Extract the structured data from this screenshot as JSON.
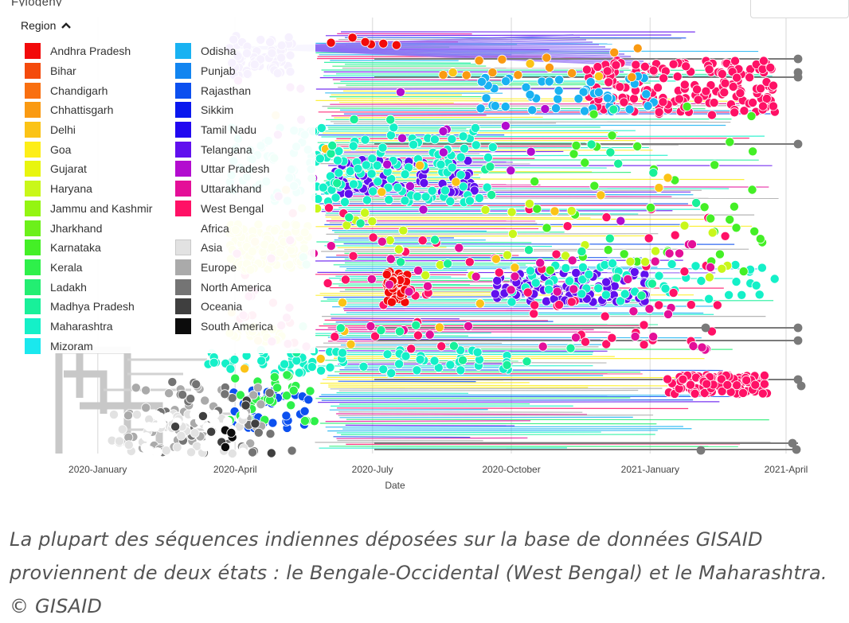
{
  "chart_data": {
    "type": "scatter",
    "subtype": "phylogenetic-tree",
    "title": "",
    "xlabel": "Date",
    "ylabel": "",
    "xlim": [
      "2019-12-01",
      "2021-04-10"
    ],
    "grid": true,
    "legend_position": "top-left",
    "x_ticks": [
      {
        "label": "2020-January",
        "date": "2020-01-01"
      },
      {
        "label": "2020-April",
        "date": "2020-04-01"
      },
      {
        "label": "2020-July",
        "date": "2020-07-01"
      },
      {
        "label": "2020-October",
        "date": "2020-10-01"
      },
      {
        "label": "2021-January",
        "date": "2021-01-01"
      },
      {
        "label": "2021-April",
        "date": "2021-04-01"
      }
    ],
    "legend": {
      "title": "Region",
      "partial_title": "Fylogeny",
      "entries": [
        {
          "name": "Andhra Pradesh",
          "color": "#f20a0a"
        },
        {
          "name": "Bihar",
          "color": "#f44a0c"
        },
        {
          "name": "Chandigarh",
          "color": "#f96f10"
        },
        {
          "name": "Chhattisgarh",
          "color": "#fa9a12"
        },
        {
          "name": "Delhi",
          "color": "#fbc316"
        },
        {
          "name": "Goa",
          "color": "#fdee18"
        },
        {
          "name": "Gujarat",
          "color": "#e8f50e"
        },
        {
          "name": "Haryana",
          "color": "#c9f71a"
        },
        {
          "name": "Jammu and Kashmir",
          "color": "#94f512"
        },
        {
          "name": "Jharkhand",
          "color": "#6cf01a"
        },
        {
          "name": "Karnataka",
          "color": "#44ef26"
        },
        {
          "name": "Kerala",
          "color": "#2ef04a"
        },
        {
          "name": "Ladakh",
          "color": "#23ee72"
        },
        {
          "name": "Madhya Pradesh",
          "color": "#18f09a"
        },
        {
          "name": "Maharashtra",
          "color": "#14f0c8"
        },
        {
          "name": "Mizoram",
          "color": "#1ae8ee"
        },
        {
          "name": "Odisha",
          "color": "#19b2f2"
        },
        {
          "name": "Punjab",
          "color": "#1285f0"
        },
        {
          "name": "Rajasthan",
          "color": "#0c50ef"
        },
        {
          "name": "Sikkim",
          "color": "#0a18ee"
        },
        {
          "name": "Tamil Nadu",
          "color": "#2108f0"
        },
        {
          "name": "Telangana",
          "color": "#6010ee"
        },
        {
          "name": "Uttar Pradesh",
          "color": "#b30ccf"
        },
        {
          "name": "Uttarakhand",
          "color": "#e40f98"
        },
        {
          "name": "West Bengal",
          "color": "#ff1166"
        },
        {
          "name": "Africa",
          "color": "#ffffff"
        },
        {
          "name": "Asia",
          "color": "#e2e2e2"
        },
        {
          "name": "Europe",
          "color": "#aaaaaa"
        },
        {
          "name": "North America",
          "color": "#747474"
        },
        {
          "name": "Oceania",
          "color": "#3f3f3f"
        },
        {
          "name": "South America",
          "color": "#0c0c0c"
        }
      ]
    },
    "series_summary": [
      {
        "name": "West Bengal",
        "cluster_dates": [
          "2020-12-20",
          "2021-03-20"
        ],
        "share": "high"
      },
      {
        "name": "Maharashtra",
        "cluster_dates": [
          "2020-03-20",
          "2021-03-20"
        ],
        "share": "high"
      },
      {
        "name": "Telangana",
        "cluster_dates": [
          "2020-06-15",
          "2020-12-25"
        ],
        "share": "medium"
      },
      {
        "name": "Gujarat",
        "cluster_dates": [
          "2020-04-01",
          "2020-08-15"
        ],
        "share": "medium"
      },
      {
        "name": "Andhra Pradesh",
        "cluster_dates": [
          "2020-06-15",
          "2020-08-15"
        ],
        "share": "low"
      }
    ]
  },
  "caption": {
    "text": "La plupart des séquences indiennes déposées sur la base de données GISAID proviennent de deux états : le Bengale-Occidental (West Bengal) et le Maharashtra. © GISAID"
  }
}
